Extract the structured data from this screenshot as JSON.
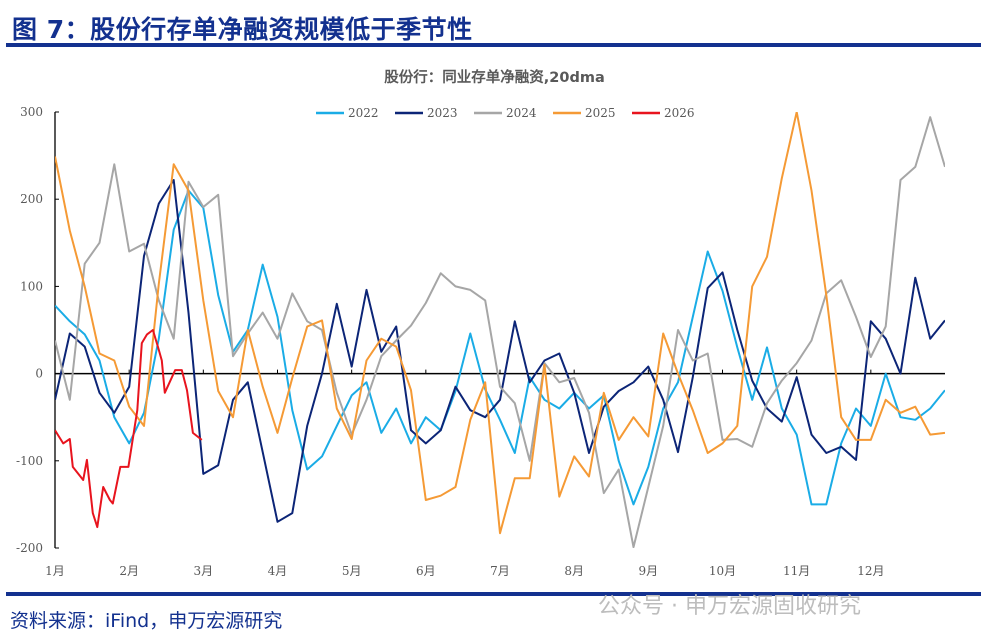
{
  "figure_title": "图 7：股份行存单净融资规模低于季节性",
  "source": "资料来源：iFind，申万宏源研究",
  "watermark": "公众号 · 申万宏源固收研究",
  "chart_data": {
    "type": "line",
    "title": "股份行：同业存单净融资,20dma",
    "xlabel": "",
    "ylabel": "",
    "ylim": [
      -200,
      300
    ],
    "yticks": [
      -200,
      -100,
      0,
      100,
      200,
      300
    ],
    "xlim": [
      1,
      13
    ],
    "xtick_labels": [
      "1月",
      "2月",
      "3月",
      "4月",
      "5月",
      "6月",
      "7月",
      "8月",
      "9月",
      "10月",
      "11月",
      "12月"
    ],
    "grid": false,
    "legend_position": "top-center",
    "x": [
      1.0,
      1.2,
      1.4,
      1.6,
      1.8,
      2.0,
      2.2,
      2.4,
      2.6,
      2.8,
      3.0,
      3.2,
      3.4,
      3.6,
      3.8,
      4.0,
      4.2,
      4.4,
      4.6,
      4.8,
      5.0,
      5.2,
      5.4,
      5.6,
      5.8,
      6.0,
      6.2,
      6.4,
      6.6,
      6.8,
      7.0,
      7.2,
      7.4,
      7.6,
      7.8,
      8.0,
      8.2,
      8.4,
      8.6,
      8.8,
      9.0,
      9.2,
      9.4,
      9.6,
      9.8,
      10.0,
      10.2,
      10.4,
      10.6,
      10.8,
      11.0,
      11.2,
      11.4,
      11.6,
      11.8,
      12.0,
      12.2,
      12.4,
      12.6,
      12.8,
      13.0
    ],
    "series": [
      {
        "name": "2022",
        "color": "#1aace6",
        "y": [
          78,
          60,
          45,
          15,
          -50,
          -80,
          -45,
          40,
          165,
          210,
          190,
          90,
          25,
          50,
          125,
          65,
          -42,
          -110,
          -95,
          -60,
          -25,
          -10,
          -68,
          -40,
          -80,
          -50,
          -65,
          -20,
          46,
          -18,
          -53,
          -91,
          -4,
          -30,
          -40,
          -22,
          -40,
          -25,
          -100,
          -150,
          -107,
          -40,
          -10,
          65,
          140,
          95,
          30,
          -30,
          30,
          -40,
          -70,
          -150,
          -150,
          -80,
          -40,
          -60,
          0,
          -50,
          -53,
          -40,
          -19
        ]
      },
      {
        "name": "2023",
        "color": "#0c2577",
        "y": [
          -30,
          46,
          31,
          -22,
          -45,
          -15,
          135,
          195,
          222,
          70,
          -115,
          -105,
          -30,
          -10,
          -90,
          -170,
          -160,
          -60,
          0,
          80,
          8,
          96,
          25,
          54,
          -65,
          -80,
          -65,
          -15,
          -42,
          -50,
          -30,
          60,
          -10,
          15,
          23,
          -22,
          -91,
          -38,
          -20,
          -10,
          8,
          -30,
          -90,
          -4,
          98,
          116,
          50,
          -8,
          -40,
          -55,
          -4,
          -70,
          -91,
          -84,
          -99,
          60,
          40,
          0,
          110,
          40,
          61
        ]
      },
      {
        "name": "2024",
        "color": "#a6a6a6",
        "y": [
          38,
          -30,
          126,
          150,
          240,
          140,
          149,
          84,
          40,
          220,
          191,
          205,
          20,
          46,
          70,
          40,
          92,
          60,
          50,
          -22,
          -70,
          -30,
          20,
          38,
          55,
          81,
          115,
          100,
          96,
          84,
          -15,
          -34,
          -100,
          12,
          -10,
          -5,
          -45,
          -137,
          -110,
          -199,
          -130,
          -60,
          50,
          15,
          23,
          -76,
          -75,
          -84,
          -34,
          -8,
          12,
          38,
          92,
          107,
          65,
          19,
          54,
          222,
          237,
          294,
          237
        ]
      },
      {
        "name": "2025",
        "color": "#f59a35",
        "y": [
          249,
          164,
          100,
          23,
          15,
          -38,
          -60,
          103,
          240,
          210,
          84,
          -20,
          -50,
          50,
          -15,
          -68,
          -5,
          54,
          61,
          -40,
          -75,
          15,
          40,
          31,
          -19,
          -145,
          -140,
          -130,
          -53,
          -10,
          -183,
          -120,
          -120,
          10,
          -141,
          -95,
          -118,
          -22,
          -76,
          -50,
          -72,
          46,
          0,
          -42,
          -91,
          -80,
          -60,
          100,
          134,
          224,
          300,
          210,
          90,
          -50,
          -76,
          -76,
          -30,
          -45,
          -38,
          -70,
          -68
        ]
      },
      {
        "name": "2026",
        "color": "#e8141e",
        "x": [
          1.0,
          1.11,
          1.2,
          1.24,
          1.38,
          1.43,
          1.51,
          1.57,
          1.65,
          1.74,
          1.78,
          1.88,
          1.99,
          2.11,
          2.17,
          2.24,
          2.32,
          2.39,
          2.44,
          2.48,
          2.62,
          2.71,
          2.78,
          2.86,
          2.98
        ],
        "y": [
          -65,
          -80,
          -75,
          -107,
          -122,
          -99,
          -160,
          -176,
          -130,
          -145,
          -149,
          -107,
          -107,
          -42,
          35,
          45,
          50,
          30,
          15,
          -22,
          4,
          4,
          -19,
          -68,
          -76
        ]
      }
    ]
  }
}
